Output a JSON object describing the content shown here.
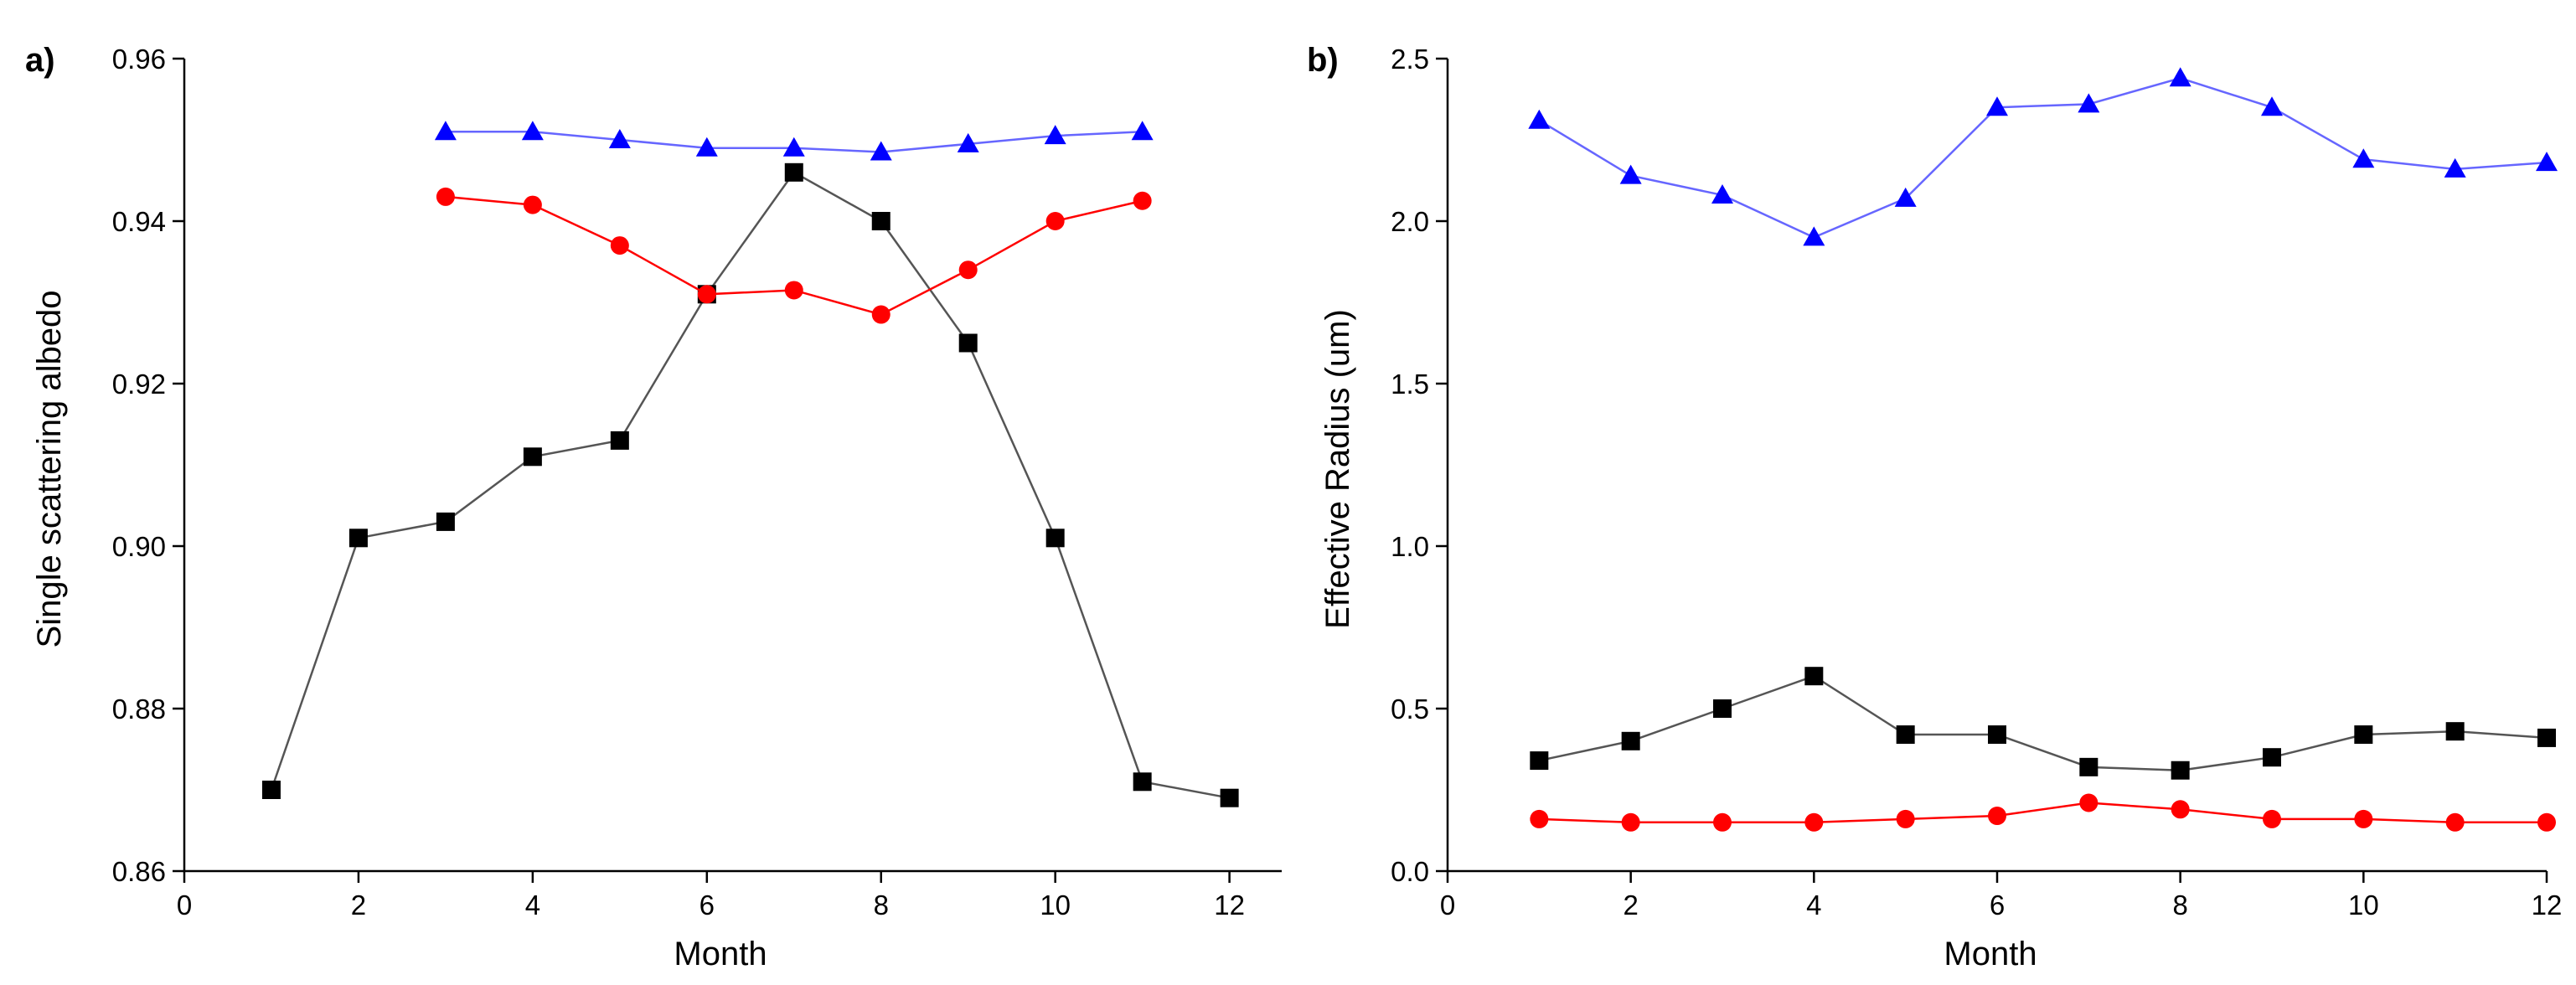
{
  "chart_data": [
    {
      "type": "line",
      "panel_label": "a)",
      "title": "",
      "xlabel": "Month",
      "ylabel": "Single scattering albedo",
      "xlim": [
        0,
        12.6
      ],
      "ylim": [
        0.86,
        0.96
      ],
      "x_ticks": [
        0,
        2,
        4,
        6,
        8,
        10,
        12
      ],
      "x_tick_labels": [
        "0",
        "2",
        "4",
        "6",
        "8",
        "10",
        "12"
      ],
      "y_ticks": [
        0.86,
        0.88,
        0.9,
        0.92,
        0.94,
        0.96
      ],
      "y_tick_labels": [
        "0.86",
        "0.88",
        "0.90",
        "0.92",
        "0.94",
        "0.96"
      ],
      "grid": false,
      "series": [
        {
          "name": "black-squares",
          "color": "#000000",
          "line_color": "#555555",
          "marker": "square",
          "x": [
            1,
            2,
            3,
            4,
            5,
            6,
            7,
            8,
            9,
            10,
            11,
            12
          ],
          "values": [
            0.87,
            0.901,
            0.903,
            0.911,
            0.913,
            0.931,
            0.946,
            0.94,
            0.925,
            0.901,
            0.871,
            0.869
          ]
        },
        {
          "name": "red-circles",
          "color": "#ff0000",
          "line_color": "#ff0000",
          "marker": "circle",
          "x": [
            3,
            4,
            5,
            6,
            7,
            8,
            9,
            10,
            11
          ],
          "values": [
            0.943,
            0.942,
            0.937,
            0.931,
            0.9315,
            0.9285,
            0.934,
            0.94,
            0.9425
          ]
        },
        {
          "name": "blue-triangles",
          "color": "#0000ff",
          "line_color": "#6666ff",
          "marker": "triangle",
          "x": [
            3,
            4,
            5,
            6,
            7,
            8,
            9,
            10,
            11
          ],
          "values": [
            0.951,
            0.951,
            0.95,
            0.949,
            0.949,
            0.9485,
            0.9495,
            0.9505,
            0.951
          ]
        }
      ]
    },
    {
      "type": "line",
      "panel_label": "b)",
      "title": "",
      "xlabel": "Month",
      "ylabel": "Effective Radius (um)",
      "xlim": [
        0,
        12
      ],
      "ylim": [
        0.0,
        2.5
      ],
      "x_ticks": [
        0,
        2,
        4,
        6,
        8,
        10,
        12
      ],
      "x_tick_labels": [
        "0",
        "2",
        "4",
        "6",
        "8",
        "10",
        "12"
      ],
      "y_ticks": [
        0.0,
        0.5,
        1.0,
        1.5,
        2.0,
        2.5
      ],
      "y_tick_labels": [
        "0.0",
        "0.5",
        "1.0",
        "1.5",
        "2.0",
        "2.5"
      ],
      "grid": false,
      "series": [
        {
          "name": "blue-triangles",
          "color": "#0000ff",
          "line_color": "#6666ff",
          "marker": "triangle",
          "x": [
            1,
            2,
            3,
            4,
            5,
            6,
            7,
            8,
            9,
            10,
            11,
            12
          ],
          "values": [
            2.31,
            2.14,
            2.08,
            1.95,
            2.07,
            2.35,
            2.36,
            2.44,
            2.35,
            2.19,
            2.16,
            2.18
          ]
        },
        {
          "name": "black-squares",
          "color": "#000000",
          "line_color": "#555555",
          "marker": "square",
          "x": [
            1,
            2,
            3,
            4,
            5,
            6,
            7,
            8,
            9,
            10,
            11,
            12
          ],
          "values": [
            0.34,
            0.4,
            0.5,
            0.6,
            0.42,
            0.42,
            0.32,
            0.31,
            0.35,
            0.42,
            0.43,
            0.41
          ]
        },
        {
          "name": "red-circles",
          "color": "#ff0000",
          "line_color": "#ff0000",
          "marker": "circle",
          "x": [
            1,
            2,
            3,
            4,
            5,
            6,
            7,
            8,
            9,
            10,
            11,
            12
          ],
          "values": [
            0.16,
            0.15,
            0.15,
            0.15,
            0.16,
            0.17,
            0.21,
            0.19,
            0.16,
            0.16,
            0.15,
            0.15
          ]
        }
      ]
    }
  ]
}
